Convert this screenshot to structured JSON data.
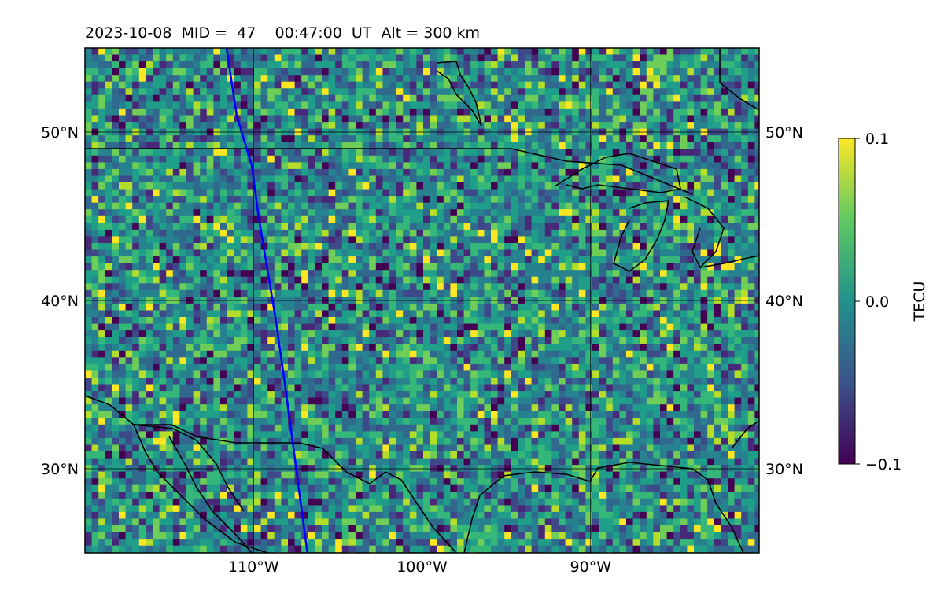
{
  "title": "2023-10-08  MID =  47    00:47:00  UT  Alt = 300 km",
  "map": {
    "lon_range": [
      -120,
      -80
    ],
    "lat_range": [
      25,
      55
    ],
    "lon_ticks": [
      {
        "value": -110,
        "label": "110°W"
      },
      {
        "value": -100,
        "label": "100°W"
      },
      {
        "value": -90,
        "label": "90°W"
      }
    ],
    "lat_ticks": [
      {
        "value": 30,
        "label": "30°N"
      },
      {
        "value": 40,
        "label": "40°N"
      },
      {
        "value": 50,
        "label": "50°N"
      }
    ],
    "track_color": "#0000ff",
    "track": [
      [
        -111.6,
        55
      ],
      [
        -111.0,
        51
      ],
      [
        -110.1,
        48
      ],
      [
        -109.7,
        45
      ],
      [
        -109.2,
        42
      ],
      [
        -108.7,
        39
      ],
      [
        -108.2,
        35.5
      ],
      [
        -107.6,
        31
      ],
      [
        -107.2,
        28
      ],
      [
        -106.8,
        25
      ]
    ]
  },
  "colorbar": {
    "label": "TECU",
    "min": -0.1,
    "max": 0.1,
    "tick_labels": [
      "0.1",
      "0.0",
      "−0.1"
    ],
    "colormap": "viridis"
  }
}
